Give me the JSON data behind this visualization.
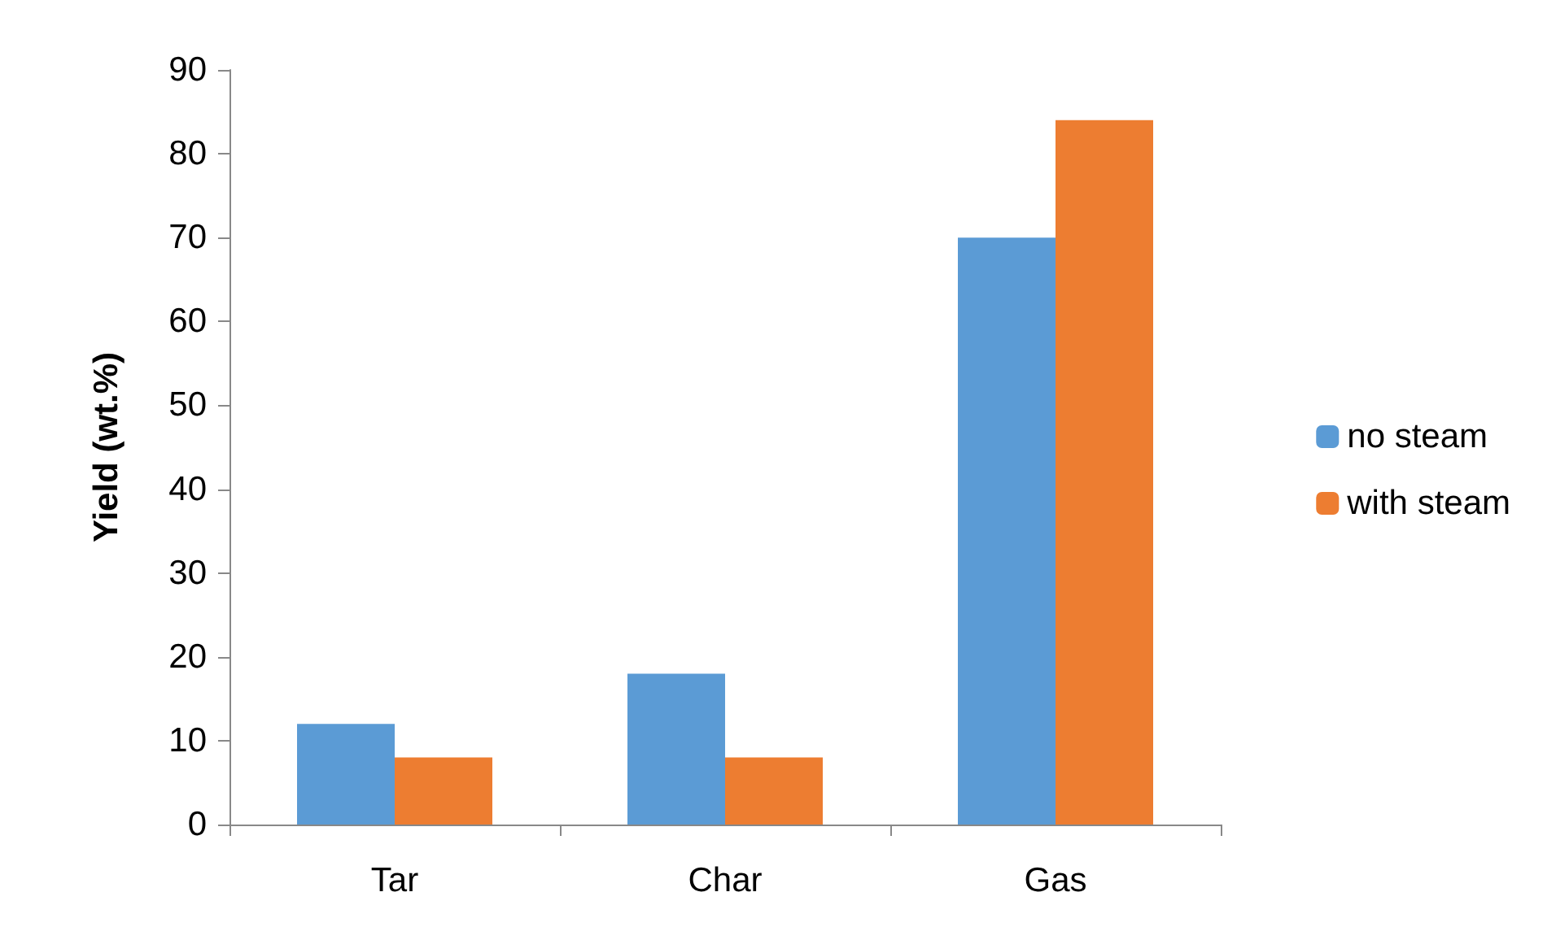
{
  "chart_data": {
    "type": "bar",
    "ylabel": "Yield (wt.%)",
    "categories": [
      "Tar",
      "Char",
      "Gas"
    ],
    "series": [
      {
        "name": "no steam",
        "color": "#5b9bd5",
        "values": [
          12,
          18,
          70
        ]
      },
      {
        "name": "with steam",
        "color": "#ed7d31",
        "values": [
          8,
          8,
          84
        ]
      }
    ],
    "ylim": [
      0,
      90
    ],
    "yticks": [
      0,
      10,
      20,
      30,
      40,
      50,
      60,
      70,
      80,
      90
    ],
    "grid": false,
    "legend": "right"
  }
}
